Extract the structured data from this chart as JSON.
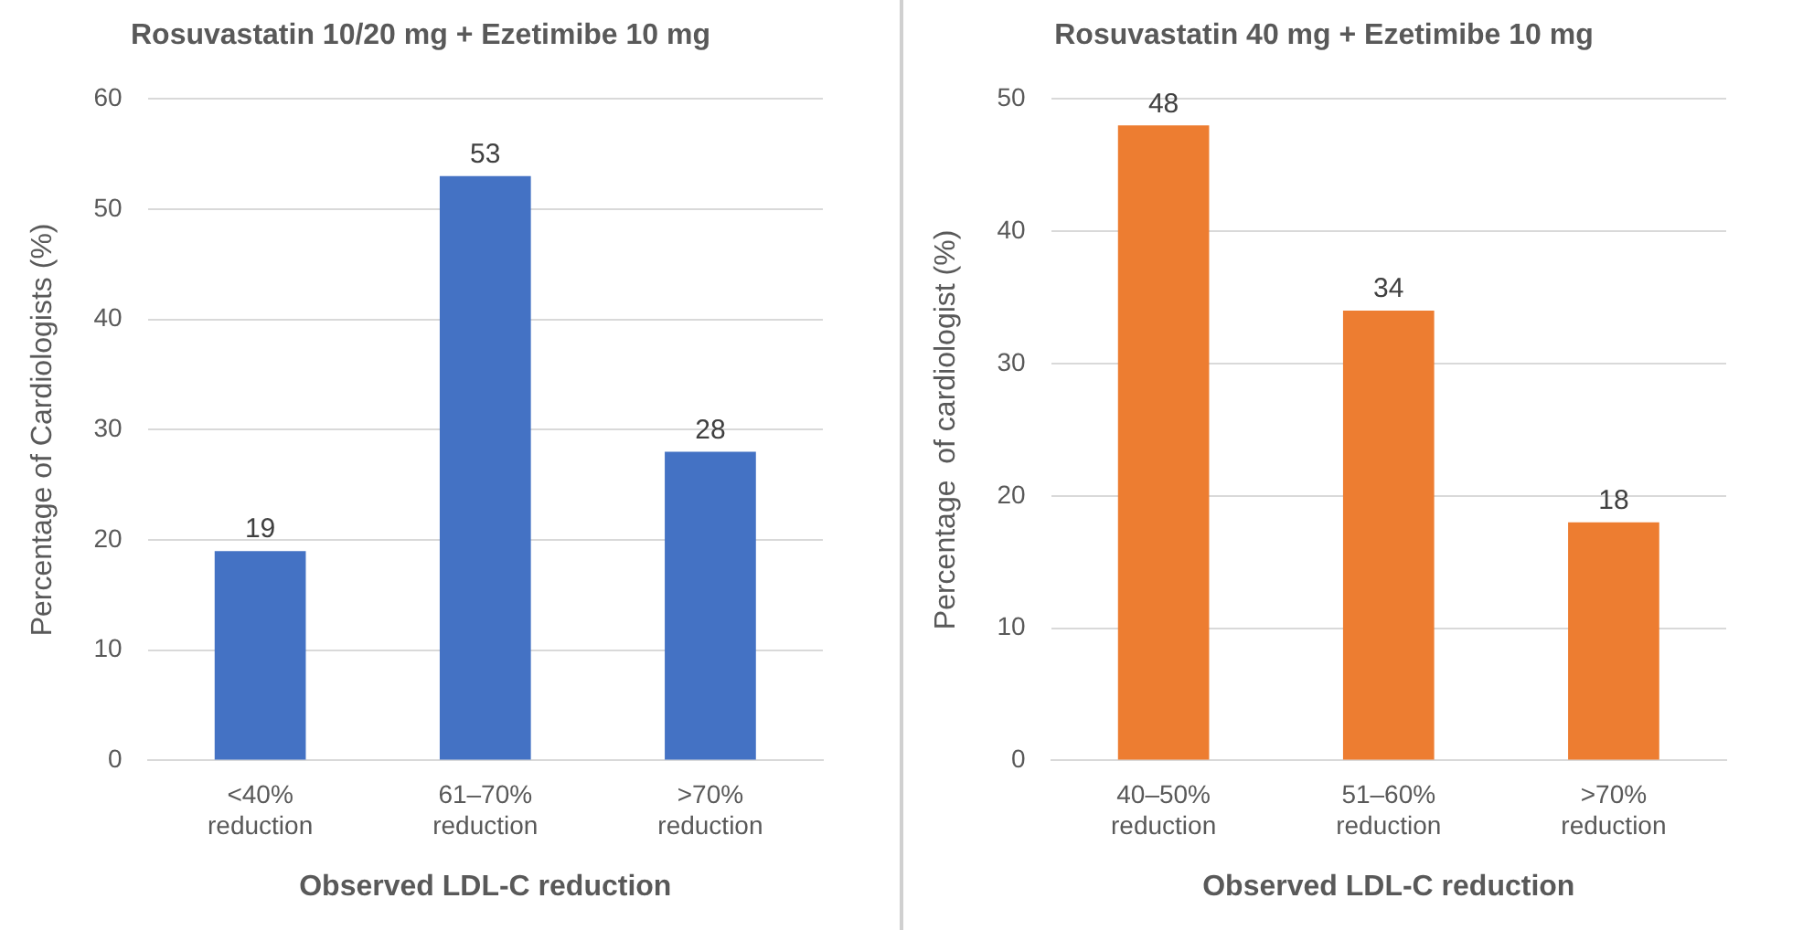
{
  "chart_data": [
    {
      "type": "bar",
      "title": "Rosuvastatin 10/20 mg + Ezetimibe 10 mg",
      "xlabel": "Observed LDL-C reduction",
      "ylabel": "Percentage of Cardiologists (%)",
      "categories": [
        "<40% reduction",
        "61–70% reduction",
        ">70% reduction"
      ],
      "values": [
        19,
        53,
        28
      ],
      "color": "#4472c4",
      "ylim": [
        0,
        60
      ],
      "yticks": [
        0,
        10,
        20,
        30,
        40,
        50,
        60
      ],
      "grid": "y",
      "data_labels": true
    },
    {
      "type": "bar",
      "title": "Rosuvastatin 40 mg + Ezetimibe 10 mg",
      "xlabel": "Observed LDL-C reduction",
      "ylabel": "Percentage  of cardiologist (%)",
      "categories": [
        "40–50% reduction",
        "51–60% reduction",
        ">70% reduction"
      ],
      "values": [
        48,
        34,
        18
      ],
      "color": "#ed7d31",
      "ylim": [
        0,
        50
      ],
      "yticks": [
        0,
        10,
        20,
        30,
        40,
        50
      ],
      "grid": "y",
      "data_labels": true
    }
  ]
}
